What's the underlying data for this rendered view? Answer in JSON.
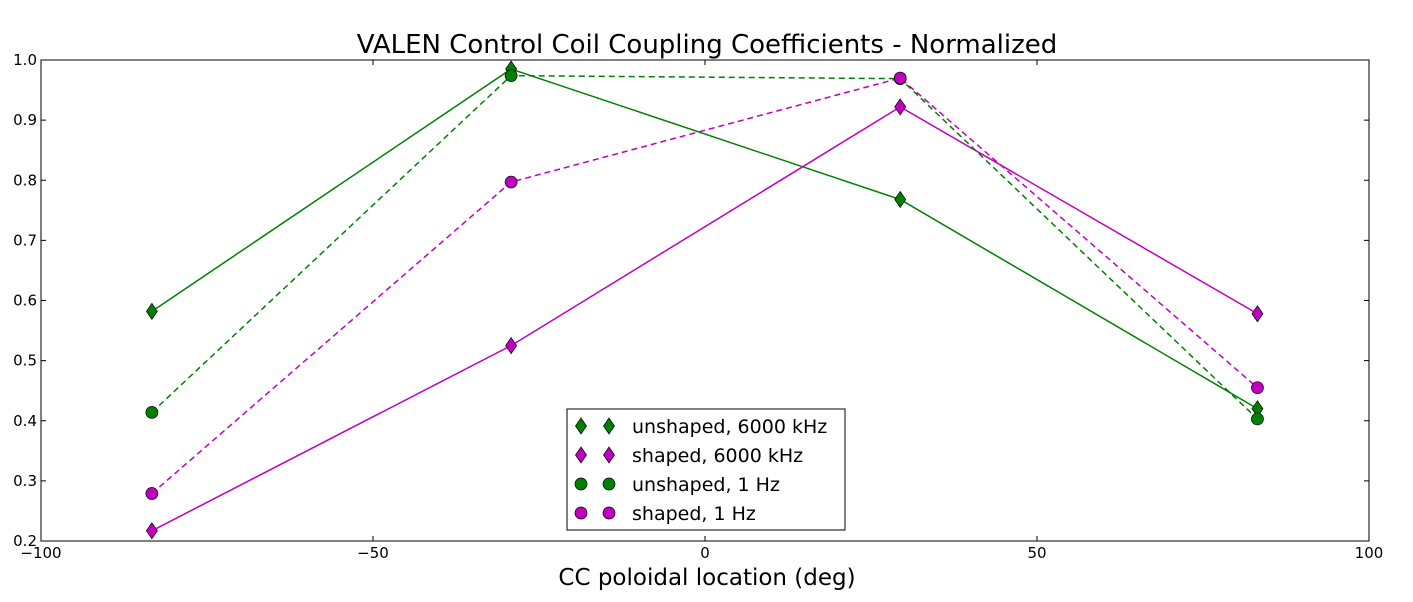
{
  "chart_data": {
    "type": "line",
    "title": "VALEN Control Coil Coupling Coefficients - Normalized",
    "xlabel": "CC poloidal location (deg)",
    "ylabel": "",
    "xlim": [
      -100,
      100
    ],
    "ylim": [
      0.2,
      1.0
    ],
    "xticks": [
      -100,
      -50,
      0,
      50,
      100
    ],
    "xtick_labels": [
      "−100",
      "−50",
      "0",
      "50",
      "100"
    ],
    "yticks": [
      0.2,
      0.3,
      0.4,
      0.5,
      0.6,
      0.7,
      0.8,
      0.9,
      1.0
    ],
    "ytick_labels": [
      "0.2",
      "0.3",
      "0.4",
      "0.5",
      "0.6",
      "0.7",
      "0.8",
      "0.9",
      "1.0"
    ],
    "grid": false,
    "legend_position": "bottom-center",
    "x": [
      -83.3,
      -29.2,
      29.4,
      83.2
    ],
    "series": [
      {
        "name": "unshaped, 6000 kHz",
        "values": [
          0.582,
          0.985,
          0.768,
          0.42
        ],
        "color": "#008000",
        "linestyle": "solid",
        "marker": "diamond"
      },
      {
        "name": "shaped, 6000 kHz",
        "values": [
          0.217,
          0.525,
          0.922,
          0.578
        ],
        "color": "#bf00bf",
        "linestyle": "solid",
        "marker": "diamond"
      },
      {
        "name": "unshaped, 1 Hz",
        "values": [
          0.414,
          0.974,
          0.969,
          0.403
        ],
        "color": "#008000",
        "linestyle": "dashed",
        "marker": "circle"
      },
      {
        "name": "shaped, 1 Hz",
        "values": [
          0.279,
          0.797,
          0.97,
          0.455
        ],
        "color": "#bf00bf",
        "linestyle": "dashed",
        "marker": "circle"
      }
    ]
  }
}
